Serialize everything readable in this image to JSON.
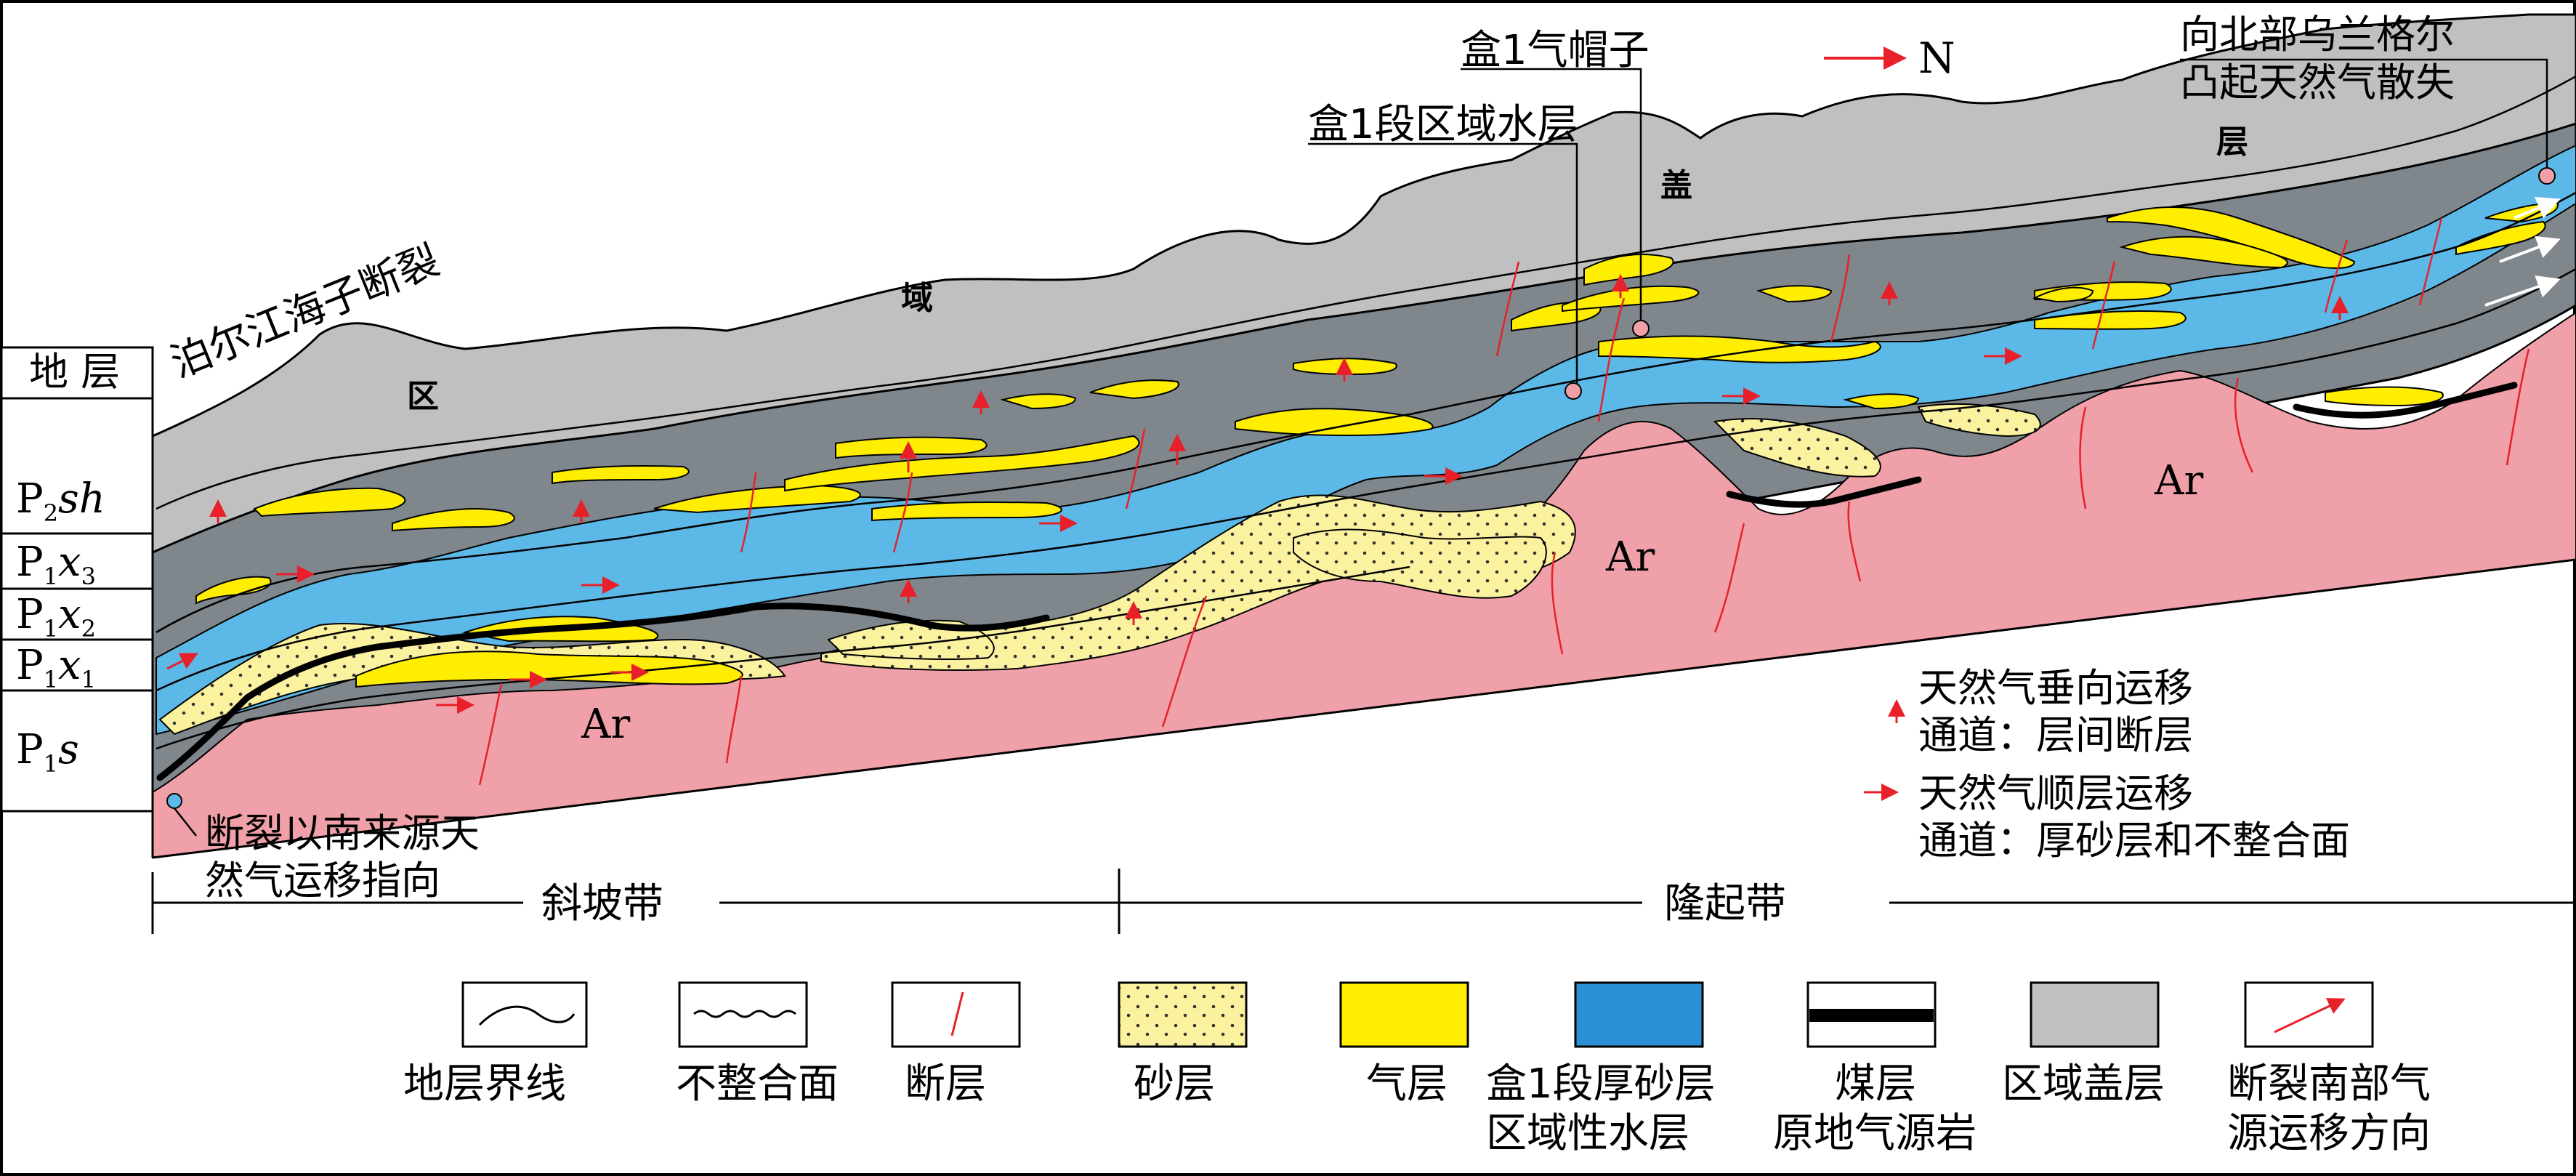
{
  "strata": {
    "header": "地 层",
    "rows": [
      {
        "base": "P",
        "sub": "2",
        "it": "sh"
      },
      {
        "base": "P",
        "sub": "1",
        "it": "x",
        "sub2": "3"
      },
      {
        "base": "P",
        "sub": "1",
        "it": "x",
        "sub2": "2"
      },
      {
        "base": "P",
        "sub": "1",
        "it": "x",
        "sub2": "1"
      },
      {
        "base": "P",
        "sub": "1",
        "it": "s"
      }
    ]
  },
  "labels": {
    "fault_name": "泊尔江海子断裂",
    "cap_1": "区",
    "cap_2": "域",
    "cap_3": "盖",
    "cap_4": "层",
    "gas_cap": "盒1气帽子",
    "water_layer": "盒1段区域水层",
    "north": "N",
    "escape_line1": "向北部乌兰格尔",
    "escape_line2": "凸起天然气散失",
    "ar": "Ar",
    "south_source_line1": "断裂以南来源天",
    "south_source_line2": "然气运移指向",
    "vertical_line1": "天然气垂向运移",
    "vertical_line2": "通道：层间断层",
    "lateral_line1": "天然气顺层运移",
    "lateral_line2": "通道：厚砂层和不整合面",
    "zone_slope": "斜坡带",
    "zone_uplift": "隆起带"
  },
  "legend": [
    {
      "key": "boundary",
      "label": "地层界线",
      "label2": ""
    },
    {
      "key": "unconformity",
      "label": "不整合面",
      "label2": ""
    },
    {
      "key": "fault",
      "label": "断层",
      "label2": ""
    },
    {
      "key": "sand",
      "label": "砂层",
      "label2": ""
    },
    {
      "key": "gas",
      "label": "气层",
      "label2": ""
    },
    {
      "key": "water",
      "label": "盒1段厚砂层",
      "label2": "区域性水层"
    },
    {
      "key": "coal",
      "label": "煤层",
      "label2": "原地气源岩"
    },
    {
      "key": "cap",
      "label": "区域盖层",
      "label2": ""
    },
    {
      "key": "south",
      "label": "断裂南部气",
      "label2": "源运移方向"
    }
  ],
  "colors": {
    "cap": "#c0c0c0",
    "formation": "#7f868c",
    "water": "#5cb8e6",
    "water_legend": "#2a8fd6",
    "gas": "#ffee00",
    "sand": "#fbf2a0",
    "basement": "#f0a0a8",
    "coal": "#000000",
    "arrow": "#e8202a"
  }
}
